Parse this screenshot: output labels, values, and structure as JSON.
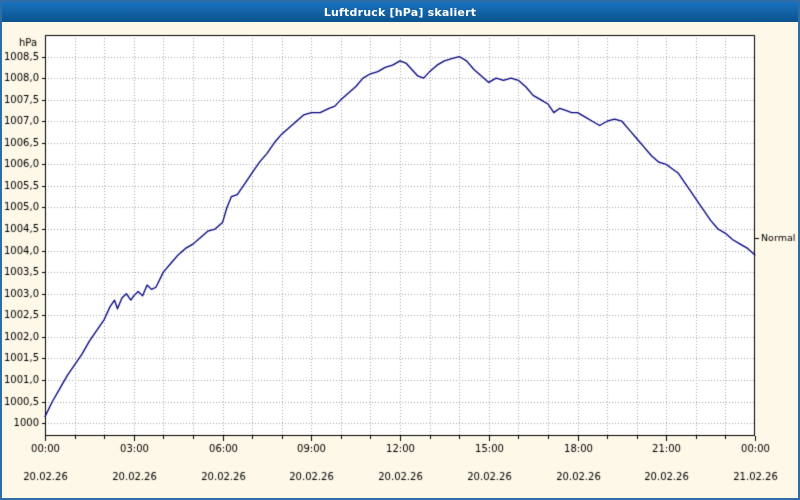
{
  "window": {
    "title": "Luftdruck [hPa] skaliert"
  },
  "colors": {
    "titlebar_bg": "#0e61a9",
    "titlebar_text": "#ffffff",
    "page_bg": "#fdf8e8",
    "plot_bg": "#ffffff",
    "grid": "#a8a8a8",
    "axis": "#000000",
    "line": "#00007f",
    "frame": "#2e6da8"
  },
  "chart_data": {
    "type": "line",
    "title": "Luftdruck [hPa] skaliert",
    "xlabel": "",
    "ylabel": "hPa",
    "ylim": [
      999.7,
      1009.0
    ],
    "xlim_hours": [
      0,
      24
    ],
    "grid": "dotted, horizontal every 0.5 hPa, vertical every hour",
    "legend_position": "none",
    "y_ticks": [
      {
        "v": 1008.5,
        "label": "1008,5"
      },
      {
        "v": 1008.0,
        "label": "1008,0"
      },
      {
        "v": 1007.5,
        "label": "1007,5"
      },
      {
        "v": 1007.0,
        "label": "1007,0"
      },
      {
        "v": 1006.5,
        "label": "1006,5"
      },
      {
        "v": 1006.0,
        "label": "1006,0"
      },
      {
        "v": 1005.5,
        "label": "1005,5"
      },
      {
        "v": 1005.0,
        "label": "1005,0"
      },
      {
        "v": 1004.5,
        "label": "1004,5"
      },
      {
        "v": 1004.0,
        "label": "1004,0"
      },
      {
        "v": 1003.5,
        "label": "1003,5"
      },
      {
        "v": 1003.0,
        "label": "1003,0"
      },
      {
        "v": 1002.5,
        "label": "1002,5"
      },
      {
        "v": 1002.0,
        "label": "1002,0"
      },
      {
        "v": 1001.5,
        "label": "1001,5"
      },
      {
        "v": 1001.0,
        "label": "1001,0"
      },
      {
        "v": 1000.5,
        "label": "1000,5"
      },
      {
        "v": 1000.0,
        "label": "1000"
      }
    ],
    "x_ticks": [
      {
        "hour": 0,
        "time": "00:00",
        "date": "20.02.26"
      },
      {
        "hour": 3,
        "time": "03:00",
        "date": "20.02.26"
      },
      {
        "hour": 6,
        "time": "06:00",
        "date": "20.02.26"
      },
      {
        "hour": 9,
        "time": "09:00",
        "date": "20.02.26"
      },
      {
        "hour": 12,
        "time": "12:00",
        "date": "20.02.26"
      },
      {
        "hour": 15,
        "time": "15:00",
        "date": "20.02.26"
      },
      {
        "hour": 18,
        "time": "18:00",
        "date": "20.02.26"
      },
      {
        "hour": 21,
        "time": "21:00",
        "date": "20.02.26"
      },
      {
        "hour": 24,
        "time": "00:00",
        "date": "21.02.26"
      }
    ],
    "annotation": {
      "label": "Normal",
      "value": 1004.3
    },
    "series": [
      {
        "name": "Luftdruck",
        "points": [
          [
            0.0,
            1000.15
          ],
          [
            0.25,
            1000.5
          ],
          [
            0.5,
            1000.8
          ],
          [
            0.75,
            1001.1
          ],
          [
            1.0,
            1001.35
          ],
          [
            1.25,
            1001.6
          ],
          [
            1.5,
            1001.9
          ],
          [
            1.75,
            1002.15
          ],
          [
            2.0,
            1002.4
          ],
          [
            2.2,
            1002.7
          ],
          [
            2.35,
            1002.85
          ],
          [
            2.45,
            1002.65
          ],
          [
            2.6,
            1002.9
          ],
          [
            2.75,
            1003.0
          ],
          [
            2.9,
            1002.85
          ],
          [
            3.0,
            1002.95
          ],
          [
            3.15,
            1003.05
          ],
          [
            3.3,
            1002.95
          ],
          [
            3.45,
            1003.2
          ],
          [
            3.6,
            1003.1
          ],
          [
            3.75,
            1003.15
          ],
          [
            4.0,
            1003.5
          ],
          [
            4.25,
            1003.7
          ],
          [
            4.5,
            1003.9
          ],
          [
            4.75,
            1004.05
          ],
          [
            5.0,
            1004.15
          ],
          [
            5.25,
            1004.3
          ],
          [
            5.5,
            1004.45
          ],
          [
            5.75,
            1004.5
          ],
          [
            6.0,
            1004.65
          ],
          [
            6.15,
            1005.0
          ],
          [
            6.3,
            1005.25
          ],
          [
            6.5,
            1005.3
          ],
          [
            6.75,
            1005.55
          ],
          [
            7.0,
            1005.8
          ],
          [
            7.25,
            1006.05
          ],
          [
            7.5,
            1006.25
          ],
          [
            7.75,
            1006.5
          ],
          [
            8.0,
            1006.7
          ],
          [
            8.25,
            1006.85
          ],
          [
            8.5,
            1007.0
          ],
          [
            8.75,
            1007.15
          ],
          [
            9.0,
            1007.2
          ],
          [
            9.3,
            1007.2
          ],
          [
            9.6,
            1007.3
          ],
          [
            9.8,
            1007.35
          ],
          [
            10.0,
            1007.5
          ],
          [
            10.25,
            1007.65
          ],
          [
            10.5,
            1007.8
          ],
          [
            10.75,
            1008.0
          ],
          [
            11.0,
            1008.1
          ],
          [
            11.25,
            1008.15
          ],
          [
            11.5,
            1008.25
          ],
          [
            11.75,
            1008.3
          ],
          [
            12.0,
            1008.4
          ],
          [
            12.2,
            1008.35
          ],
          [
            12.4,
            1008.2
          ],
          [
            12.6,
            1008.05
          ],
          [
            12.8,
            1008.0
          ],
          [
            13.0,
            1008.15
          ],
          [
            13.25,
            1008.3
          ],
          [
            13.5,
            1008.4
          ],
          [
            13.75,
            1008.45
          ],
          [
            14.0,
            1008.5
          ],
          [
            14.25,
            1008.4
          ],
          [
            14.5,
            1008.2
          ],
          [
            14.75,
            1008.05
          ],
          [
            15.0,
            1007.9
          ],
          [
            15.25,
            1008.0
          ],
          [
            15.5,
            1007.95
          ],
          [
            15.75,
            1008.0
          ],
          [
            16.0,
            1007.95
          ],
          [
            16.25,
            1007.8
          ],
          [
            16.5,
            1007.6
          ],
          [
            16.75,
            1007.5
          ],
          [
            17.0,
            1007.4
          ],
          [
            17.2,
            1007.2
          ],
          [
            17.4,
            1007.3
          ],
          [
            17.6,
            1007.25
          ],
          [
            17.8,
            1007.2
          ],
          [
            18.0,
            1007.2
          ],
          [
            18.25,
            1007.1
          ],
          [
            18.5,
            1007.0
          ],
          [
            18.75,
            1006.9
          ],
          [
            19.0,
            1007.0
          ],
          [
            19.25,
            1007.05
          ],
          [
            19.5,
            1007.0
          ],
          [
            19.75,
            1006.8
          ],
          [
            20.0,
            1006.6
          ],
          [
            20.25,
            1006.4
          ],
          [
            20.5,
            1006.2
          ],
          [
            20.75,
            1006.05
          ],
          [
            21.0,
            1006.0
          ],
          [
            21.2,
            1005.9
          ],
          [
            21.4,
            1005.8
          ],
          [
            21.6,
            1005.6
          ],
          [
            21.8,
            1005.4
          ],
          [
            22.0,
            1005.2
          ],
          [
            22.25,
            1004.95
          ],
          [
            22.5,
            1004.7
          ],
          [
            22.75,
            1004.5
          ],
          [
            23.0,
            1004.4
          ],
          [
            23.25,
            1004.25
          ],
          [
            23.5,
            1004.15
          ],
          [
            23.75,
            1004.05
          ],
          [
            24.0,
            1003.9
          ]
        ]
      }
    ]
  }
}
